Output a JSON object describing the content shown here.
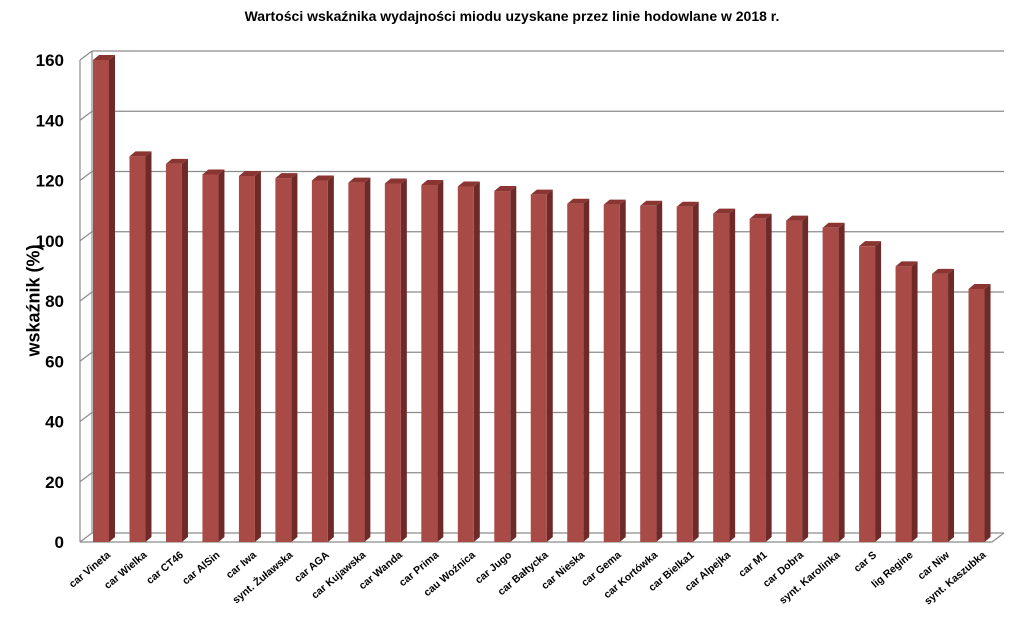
{
  "chart_data": {
    "type": "bar",
    "title": "Wartości wskaźnika wydajności miodu uzyskane przez linie hodowlane w 2018 r.",
    "xlabel": "",
    "ylabel": "wskaźnik (%)",
    "ylim": [
      0,
      160
    ],
    "yticks": [
      0,
      20,
      40,
      60,
      80,
      100,
      120,
      140,
      160
    ],
    "grid": true,
    "legend": null,
    "style": "3d-column",
    "bar_color": "#A84B47",
    "bar_side_color": "#6E2A28",
    "bar_top_color": "#8A3532",
    "categories": [
      "car Vineta",
      "car Wielka",
      "car CT46",
      "car AlSin",
      "car Iwa",
      "synt. Żuławska",
      "car AGA",
      "car Kujawska",
      "car Wanda",
      "car Prima",
      "cau Woźnica",
      "car Jugo",
      "car Bałtycka",
      "car Nieska",
      "car Gema",
      "car Kortówka",
      "car Bielka1",
      "car Alpejka",
      "car M1",
      "car Dobra",
      "synt. Karolinka",
      "car S",
      "lig Regine",
      "car Niw",
      "synt. Kaszubka"
    ],
    "values": [
      160,
      128,
      125.5,
      122,
      121.5,
      120.8,
      120,
      119.3,
      119,
      118.5,
      118,
      116.5,
      115.3,
      112.3,
      112,
      111.6,
      111.3,
      109,
      107.3,
      106.7,
      104.3,
      98.2,
      91.5,
      89,
      84
    ]
  }
}
